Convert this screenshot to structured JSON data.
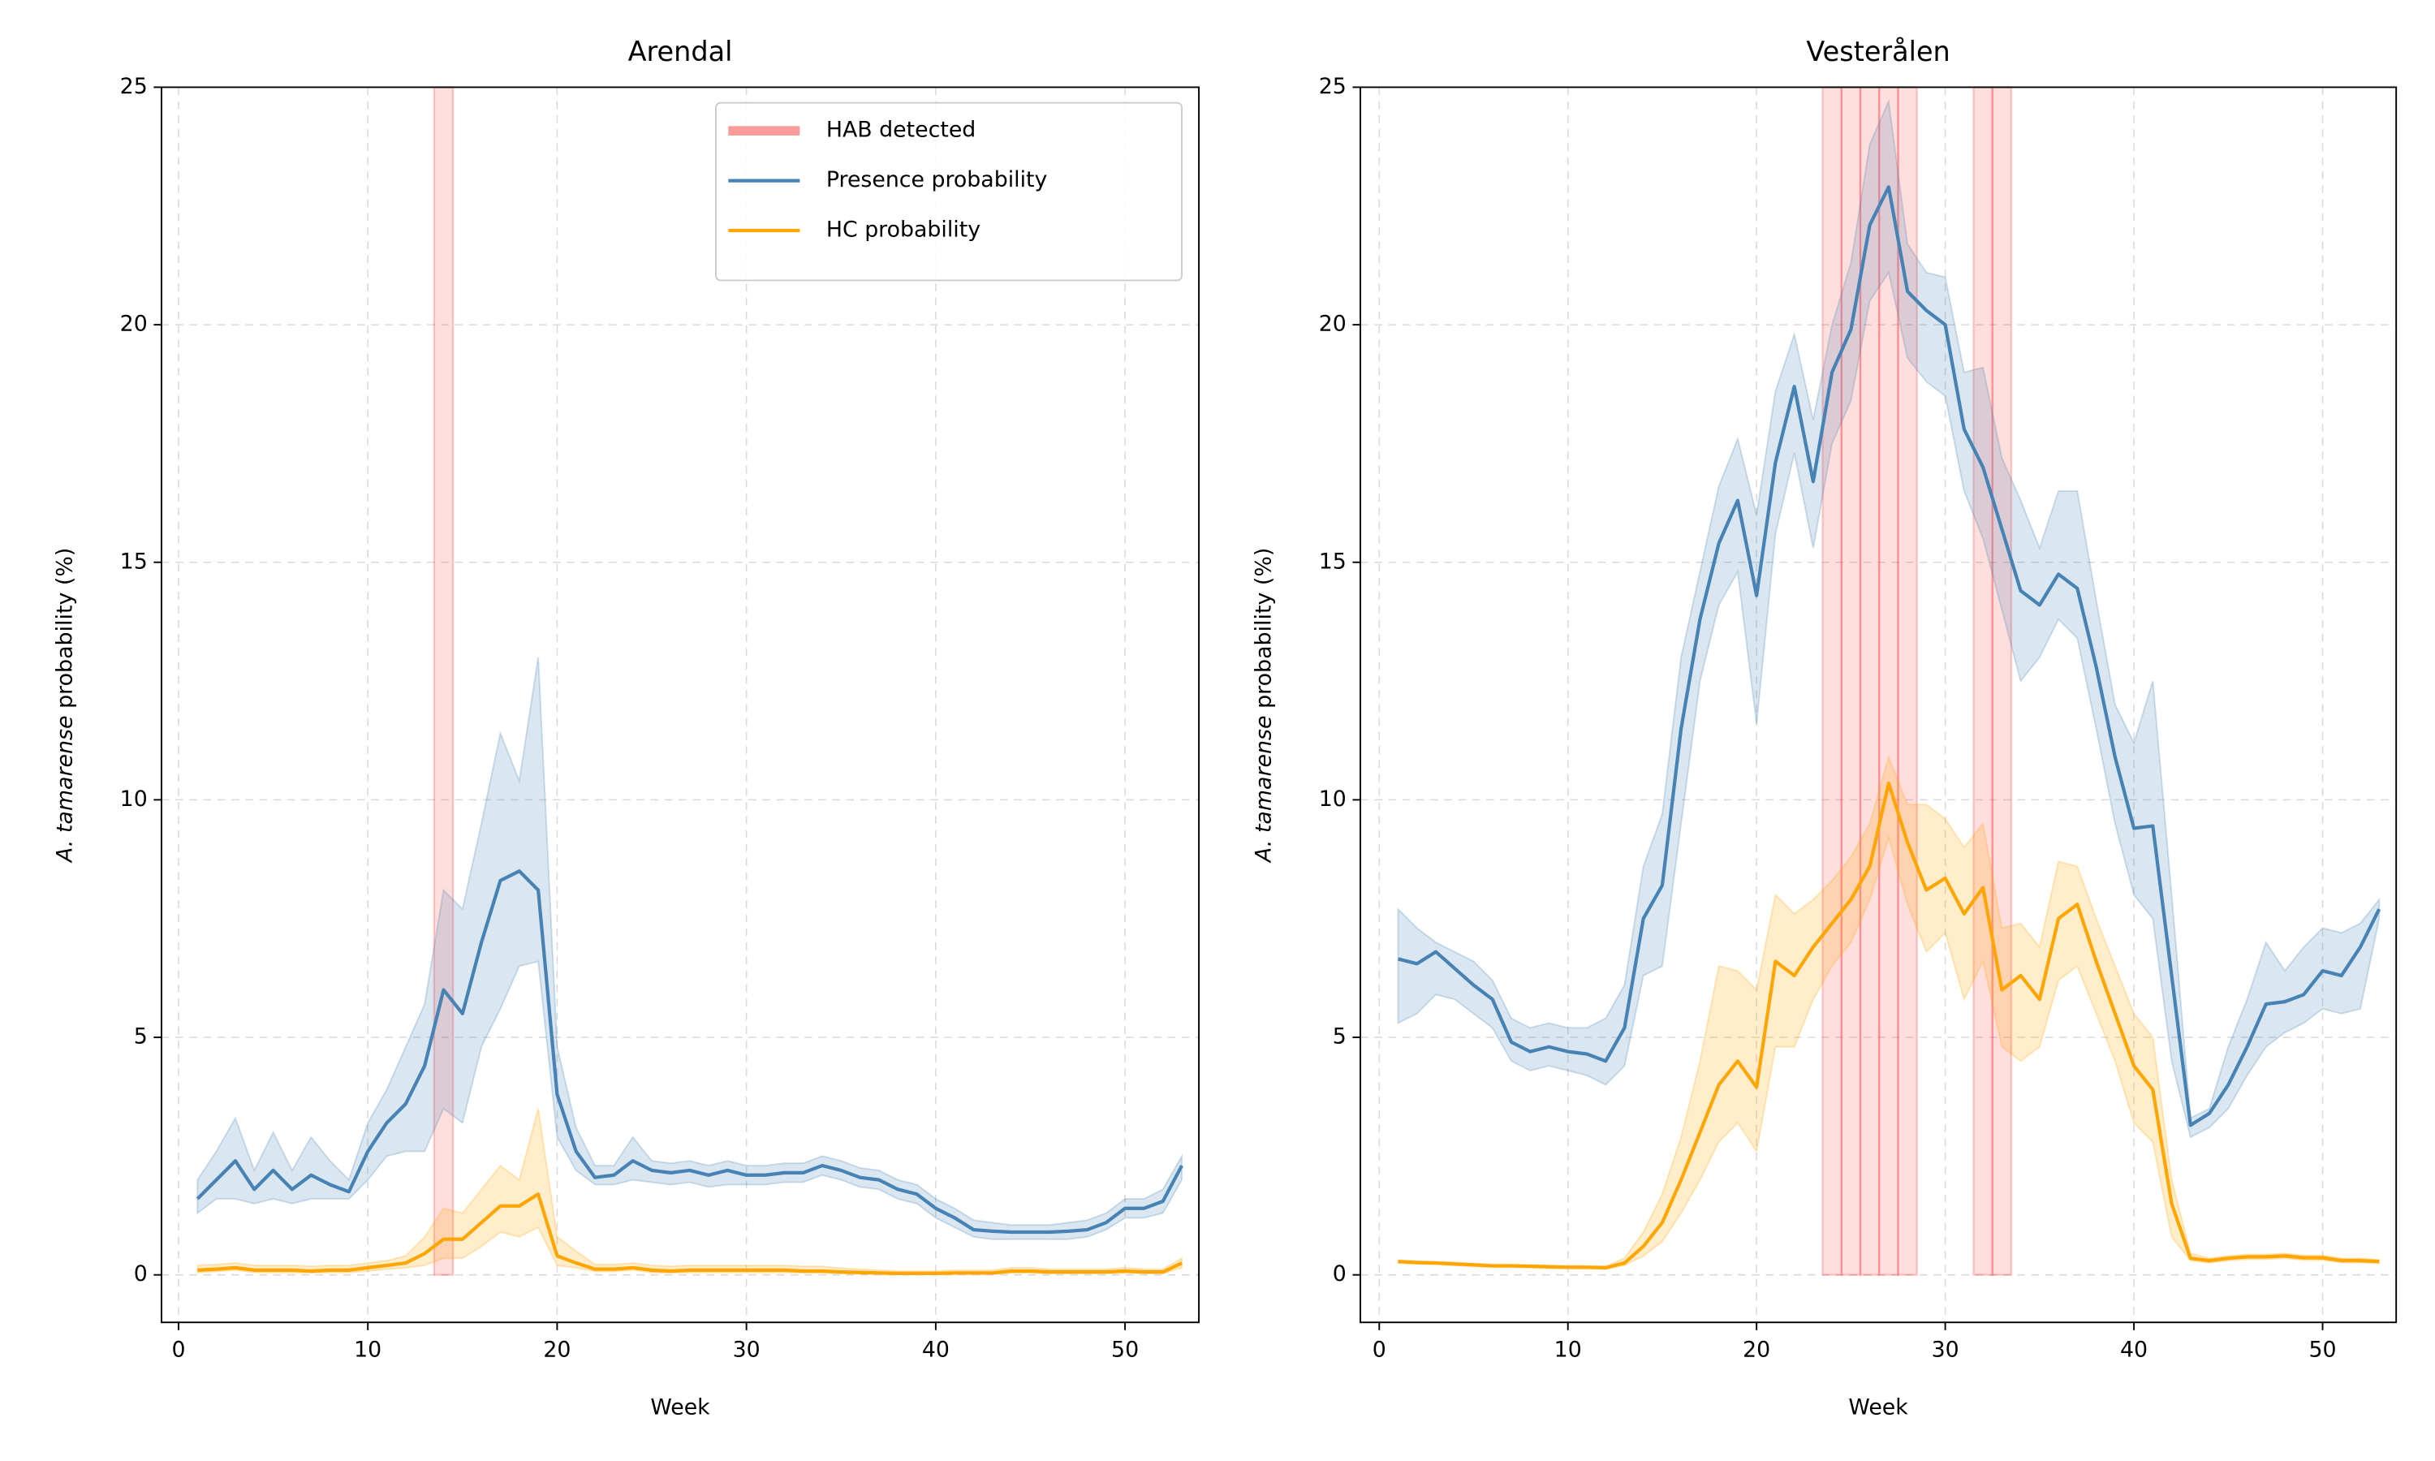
{
  "chart_data": [
    {
      "type": "line",
      "title": "Arendal",
      "xlabel": "Week",
      "ylabel_species": "A. tamarense",
      "ylabel_rest": "probability (%)",
      "xlim": [
        -0.9,
        53.9
      ],
      "ylim": [
        -1,
        25
      ],
      "xticks": [
        0,
        10,
        20,
        30,
        40,
        50
      ],
      "yticks": [
        0,
        5,
        10,
        15,
        20,
        25
      ],
      "grid": true,
      "legend": "upper right",
      "x": [
        1,
        2,
        3,
        4,
        5,
        6,
        7,
        8,
        9,
        10,
        11,
        12,
        13,
        14,
        15,
        16,
        17,
        18,
        19,
        20,
        21,
        22,
        23,
        24,
        25,
        26,
        27,
        28,
        29,
        30,
        31,
        32,
        33,
        34,
        35,
        36,
        37,
        38,
        39,
        40,
        41,
        42,
        43,
        44,
        45,
        46,
        47,
        48,
        49,
        50,
        51,
        52,
        53
      ],
      "hab": {
        "name": "HAB detected",
        "color": "#ff9a9a",
        "weeks": [
          14
        ]
      },
      "series": [
        {
          "name": "Presence probability",
          "color": "#4682b4",
          "values": [
            1.6,
            2.0,
            2.4,
            1.8,
            2.2,
            1.8,
            2.1,
            1.9,
            1.75,
            2.6,
            3.2,
            3.6,
            4.4,
            6.0,
            5.5,
            7.0,
            8.3,
            8.5,
            8.1,
            3.8,
            2.6,
            2.05,
            2.1,
            2.4,
            2.2,
            2.15,
            2.2,
            2.1,
            2.2,
            2.1,
            2.1,
            2.15,
            2.15,
            2.3,
            2.2,
            2.05,
            2.0,
            1.8,
            1.7,
            1.4,
            1.2,
            0.95,
            0.92,
            0.9,
            0.9,
            0.9,
            0.92,
            0.95,
            1.1,
            1.4,
            1.4,
            1.55,
            2.3
          ],
          "lower": [
            1.3,
            1.6,
            1.6,
            1.5,
            1.6,
            1.5,
            1.6,
            1.6,
            1.6,
            2.0,
            2.5,
            2.6,
            2.6,
            3.5,
            3.2,
            4.8,
            5.6,
            6.5,
            6.6,
            2.9,
            2.2,
            1.9,
            1.9,
            2.0,
            1.95,
            1.9,
            1.95,
            1.85,
            1.9,
            1.9,
            1.9,
            1.95,
            1.95,
            2.1,
            2.0,
            1.85,
            1.8,
            1.6,
            1.5,
            1.2,
            1.0,
            0.8,
            0.75,
            0.75,
            0.75,
            0.75,
            0.75,
            0.8,
            0.95,
            1.2,
            1.2,
            1.3,
            2.0
          ],
          "upper": [
            2.0,
            2.6,
            3.3,
            2.2,
            3.0,
            2.2,
            2.9,
            2.4,
            2.0,
            3.2,
            3.9,
            4.8,
            5.7,
            8.1,
            7.7,
            9.5,
            11.4,
            10.4,
            13.0,
            4.8,
            3.1,
            2.3,
            2.3,
            2.9,
            2.4,
            2.35,
            2.4,
            2.3,
            2.4,
            2.3,
            2.3,
            2.35,
            2.35,
            2.5,
            2.4,
            2.25,
            2.2,
            2.0,
            1.9,
            1.6,
            1.4,
            1.15,
            1.1,
            1.05,
            1.05,
            1.05,
            1.1,
            1.15,
            1.3,
            1.6,
            1.6,
            1.8,
            2.5
          ]
        },
        {
          "name": "HC probability",
          "color": "#ffa500",
          "values": [
            0.1,
            0.12,
            0.15,
            0.1,
            0.1,
            0.1,
            0.08,
            0.1,
            0.1,
            0.15,
            0.2,
            0.25,
            0.45,
            0.75,
            0.75,
            1.1,
            1.45,
            1.45,
            1.7,
            0.4,
            0.25,
            0.12,
            0.12,
            0.15,
            0.1,
            0.08,
            0.1,
            0.1,
            0.1,
            0.1,
            0.1,
            0.1,
            0.08,
            0.08,
            0.06,
            0.05,
            0.04,
            0.03,
            0.03,
            0.03,
            0.04,
            0.04,
            0.04,
            0.08,
            0.08,
            0.06,
            0.06,
            0.06,
            0.06,
            0.08,
            0.06,
            0.06,
            0.25
          ],
          "lower": [
            0.05,
            0.07,
            0.1,
            0.05,
            0.05,
            0.05,
            0.04,
            0.05,
            0.05,
            0.08,
            0.12,
            0.15,
            0.2,
            0.35,
            0.35,
            0.6,
            0.9,
            0.8,
            1.0,
            0.2,
            0.15,
            0.07,
            0.07,
            0.1,
            0.05,
            0.04,
            0.05,
            0.05,
            0.05,
            0.05,
            0.05,
            0.05,
            0.04,
            0.04,
            0.03,
            0.02,
            0.02,
            0.01,
            0.01,
            0.01,
            0.02,
            0.02,
            0.02,
            0.04,
            0.04,
            0.03,
            0.03,
            0.03,
            0.03,
            0.04,
            0.03,
            0.03,
            0.15
          ],
          "upper": [
            0.2,
            0.22,
            0.25,
            0.2,
            0.2,
            0.2,
            0.18,
            0.2,
            0.2,
            0.25,
            0.3,
            0.4,
            0.8,
            1.4,
            1.3,
            1.8,
            2.3,
            2.0,
            3.5,
            0.8,
            0.5,
            0.22,
            0.22,
            0.25,
            0.2,
            0.18,
            0.2,
            0.2,
            0.2,
            0.2,
            0.2,
            0.2,
            0.18,
            0.18,
            0.14,
            0.12,
            0.1,
            0.08,
            0.08,
            0.08,
            0.1,
            0.1,
            0.1,
            0.15,
            0.15,
            0.12,
            0.12,
            0.12,
            0.12,
            0.15,
            0.12,
            0.12,
            0.35
          ]
        }
      ]
    },
    {
      "type": "line",
      "title": "Vesterålen",
      "xlabel": "Week",
      "ylabel_species": "A. tamarense",
      "ylabel_rest": "probability (%)",
      "xlim": [
        -1,
        53.9
      ],
      "ylim": [
        -1,
        25
      ],
      "xticks": [
        0,
        10,
        20,
        30,
        40,
        50
      ],
      "yticks": [
        0,
        5,
        10,
        15,
        20,
        25
      ],
      "grid": true,
      "x": [
        1,
        2,
        3,
        4,
        5,
        6,
        7,
        8,
        9,
        10,
        11,
        12,
        13,
        14,
        15,
        16,
        17,
        18,
        19,
        20,
        21,
        22,
        23,
        24,
        25,
        26,
        27,
        28,
        29,
        30,
        31,
        32,
        33,
        34,
        35,
        36,
        37,
        38,
        39,
        40,
        41,
        42,
        43,
        44,
        45,
        46,
        47,
        48,
        49,
        50,
        51,
        52,
        53
      ],
      "hab": {
        "color": "#ff9a9a",
        "weeks": [
          24,
          25,
          26,
          27,
          28,
          32,
          33
        ]
      },
      "series": [
        {
          "color": "#4682b4",
          "values": [
            6.65,
            6.55,
            6.8,
            6.45,
            6.1,
            5.8,
            4.9,
            4.7,
            4.8,
            4.7,
            4.65,
            4.5,
            5.2,
            7.5,
            8.2,
            11.5,
            13.8,
            15.4,
            16.3,
            14.3,
            17.1,
            18.7,
            16.7,
            19.0,
            19.9,
            22.1,
            22.9,
            20.7,
            20.3,
            20.0,
            17.8,
            17.0,
            15.7,
            14.4,
            14.1,
            14.75,
            14.45,
            12.8,
            10.9,
            9.4,
            9.45,
            6.3,
            3.15,
            3.4,
            4.0,
            4.8,
            5.7,
            5.75,
            5.9,
            6.4,
            6.3,
            6.9,
            7.7
          ],
          "lower": [
            5.3,
            5.5,
            5.9,
            5.8,
            5.5,
            5.2,
            4.5,
            4.3,
            4.4,
            4.3,
            4.2,
            4.0,
            4.4,
            6.3,
            6.5,
            9.5,
            12.5,
            14.1,
            14.8,
            11.6,
            15.6,
            17.3,
            15.3,
            17.5,
            18.4,
            20.5,
            21.1,
            19.3,
            18.8,
            18.5,
            16.5,
            15.5,
            14.0,
            12.5,
            13.0,
            13.8,
            13.4,
            11.5,
            9.5,
            8.0,
            7.5,
            4.5,
            2.9,
            3.1,
            3.5,
            4.2,
            4.8,
            5.1,
            5.3,
            5.6,
            5.5,
            5.6,
            7.5
          ],
          "upper": [
            7.7,
            7.3,
            7.0,
            6.8,
            6.6,
            6.2,
            5.4,
            5.2,
            5.3,
            5.2,
            5.2,
            5.4,
            6.1,
            8.6,
            9.7,
            13.0,
            14.8,
            16.6,
            17.6,
            16.0,
            18.6,
            19.8,
            18.0,
            20.0,
            21.3,
            23.8,
            24.7,
            21.7,
            21.1,
            21.0,
            19.0,
            19.1,
            17.2,
            16.3,
            15.3,
            16.5,
            16.5,
            14.2,
            12.0,
            11.2,
            12.5,
            8.0,
            3.3,
            3.5,
            4.8,
            5.8,
            7.0,
            6.4,
            6.9,
            7.3,
            7.2,
            7.4,
            7.9
          ]
        },
        {
          "color": "#ffa500",
          "values": [
            0.28,
            0.26,
            0.25,
            0.23,
            0.21,
            0.19,
            0.19,
            0.18,
            0.17,
            0.16,
            0.16,
            0.15,
            0.25,
            0.6,
            1.1,
            2.0,
            3.0,
            4.0,
            4.5,
            3.95,
            6.6,
            6.3,
            6.9,
            7.4,
            7.9,
            8.6,
            10.35,
            9.1,
            8.1,
            8.35,
            7.6,
            8.15,
            6.0,
            6.3,
            5.8,
            7.5,
            7.8,
            6.6,
            5.5,
            4.4,
            3.9,
            1.5,
            0.35,
            0.3,
            0.35,
            0.38,
            0.38,
            0.4,
            0.36,
            0.36,
            0.3,
            0.3,
            0.28
          ],
          "lower": [
            0.25,
            0.23,
            0.22,
            0.2,
            0.18,
            0.16,
            0.16,
            0.15,
            0.14,
            0.13,
            0.13,
            0.12,
            0.2,
            0.4,
            0.7,
            1.3,
            2.0,
            2.8,
            3.2,
            2.6,
            4.8,
            4.8,
            5.8,
            6.5,
            7.0,
            7.9,
            9.2,
            7.8,
            6.8,
            7.2,
            5.8,
            6.6,
            4.8,
            4.5,
            4.8,
            6.2,
            6.5,
            5.5,
            4.5,
            3.2,
            2.8,
            0.8,
            0.3,
            0.25,
            0.3,
            0.33,
            0.33,
            0.35,
            0.31,
            0.31,
            0.26,
            0.26,
            0.24
          ],
          "upper": [
            0.31,
            0.29,
            0.28,
            0.26,
            0.24,
            0.22,
            0.22,
            0.21,
            0.2,
            0.19,
            0.19,
            0.18,
            0.35,
            0.9,
            1.7,
            2.9,
            4.5,
            6.5,
            6.4,
            6.0,
            8.0,
            7.6,
            7.9,
            8.3,
            8.8,
            9.5,
            10.9,
            9.9,
            9.9,
            9.6,
            9.0,
            9.5,
            7.3,
            7.4,
            6.9,
            8.7,
            8.6,
            7.5,
            6.5,
            5.5,
            5.0,
            2.0,
            0.45,
            0.35,
            0.4,
            0.43,
            0.43,
            0.45,
            0.41,
            0.41,
            0.35,
            0.35,
            0.32
          ]
        }
      ]
    }
  ]
}
